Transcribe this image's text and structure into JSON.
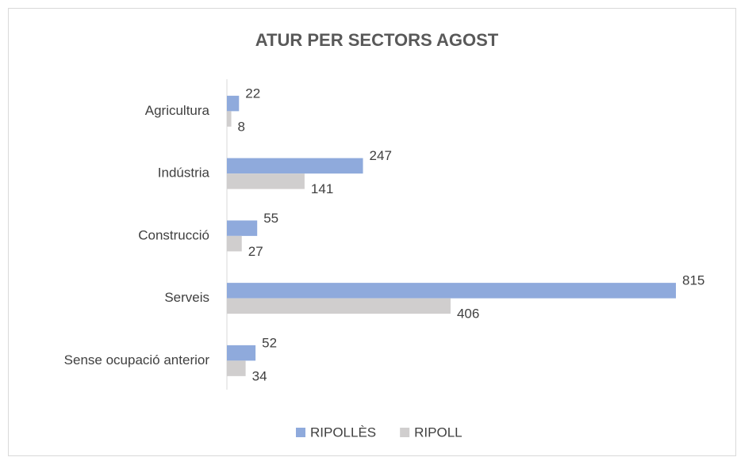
{
  "chart_data": {
    "type": "bar",
    "orientation": "horizontal",
    "title": "ATUR PER SECTORS AGOST",
    "categories": [
      "Agricultura",
      "Indústria",
      "Construcció",
      "Serveis",
      "Sense ocupació anterior"
    ],
    "series": [
      {
        "name": "RIPOLLÈS",
        "color": "#8faadc",
        "values": [
          22,
          247,
          55,
          815,
          52
        ]
      },
      {
        "name": "RIPOLL",
        "color": "#d0cece",
        "values": [
          8,
          141,
          27,
          406,
          34
        ]
      }
    ],
    "legend": "bottom"
  }
}
